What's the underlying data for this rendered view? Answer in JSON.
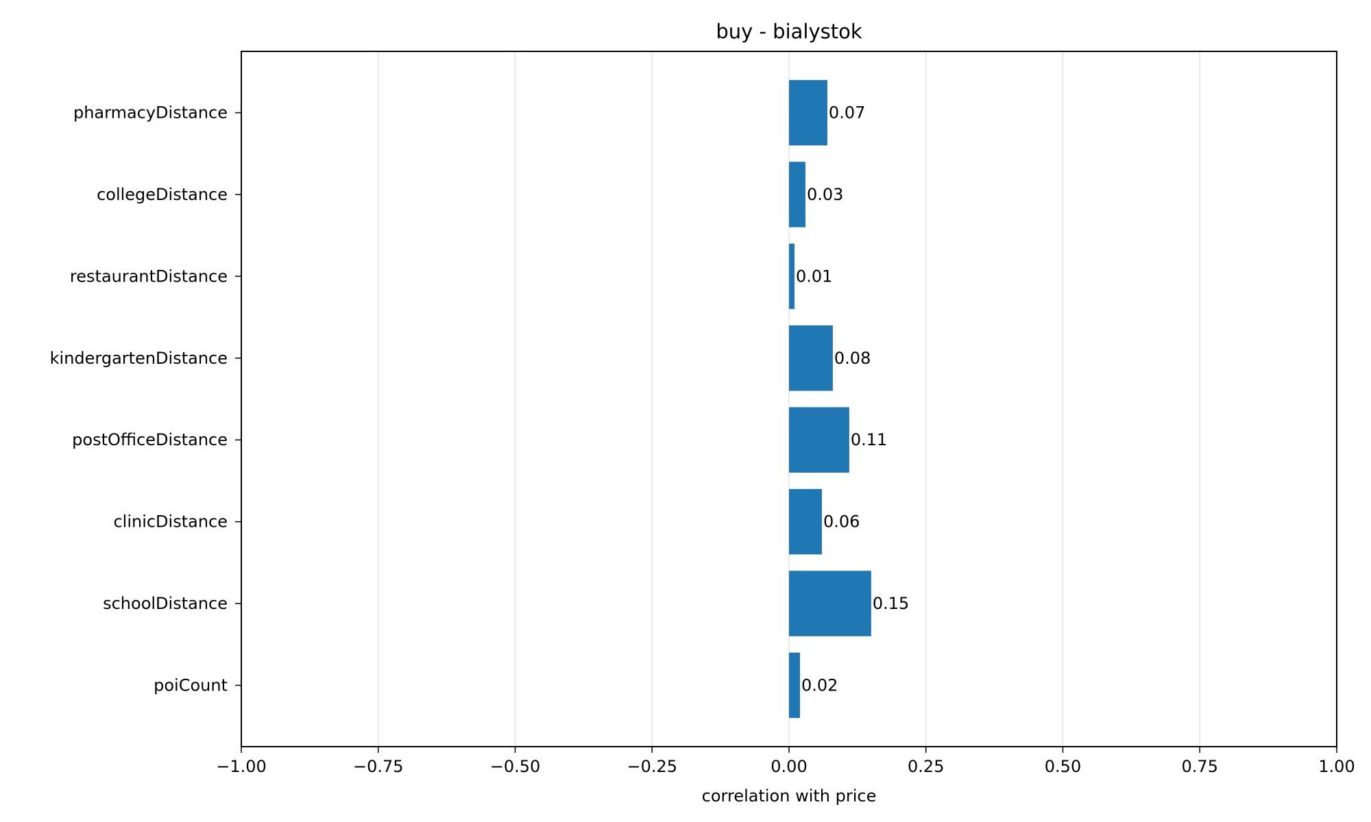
{
  "chart_data": {
    "type": "bar",
    "orientation": "horizontal",
    "title": "buy - bialystok",
    "xlabel": "correlation with price",
    "ylabel": "",
    "xlim": [
      -1.0,
      1.0
    ],
    "grid": "vertical",
    "bar_color": "#1f77b4",
    "categories": [
      "pharmacyDistance",
      "collegeDistance",
      "restaurantDistance",
      "kindergartenDistance",
      "postOfficeDistance",
      "clinicDistance",
      "schoolDistance",
      "poiCount"
    ],
    "values": [
      0.07,
      0.03,
      0.01,
      0.08,
      0.11,
      0.06,
      0.15,
      0.02
    ],
    "value_labels": [
      "0.07",
      "0.03",
      "0.01",
      "0.08",
      "0.11",
      "0.06",
      "0.15",
      "0.02"
    ],
    "x_ticks": [
      -1.0,
      -0.75,
      -0.5,
      -0.25,
      0.0,
      0.25,
      0.5,
      0.75,
      1.0
    ],
    "x_tick_labels": [
      "−1.00",
      "−0.75",
      "−0.50",
      "−0.25",
      "0.00",
      "0.25",
      "0.50",
      "0.75",
      "1.00"
    ]
  }
}
